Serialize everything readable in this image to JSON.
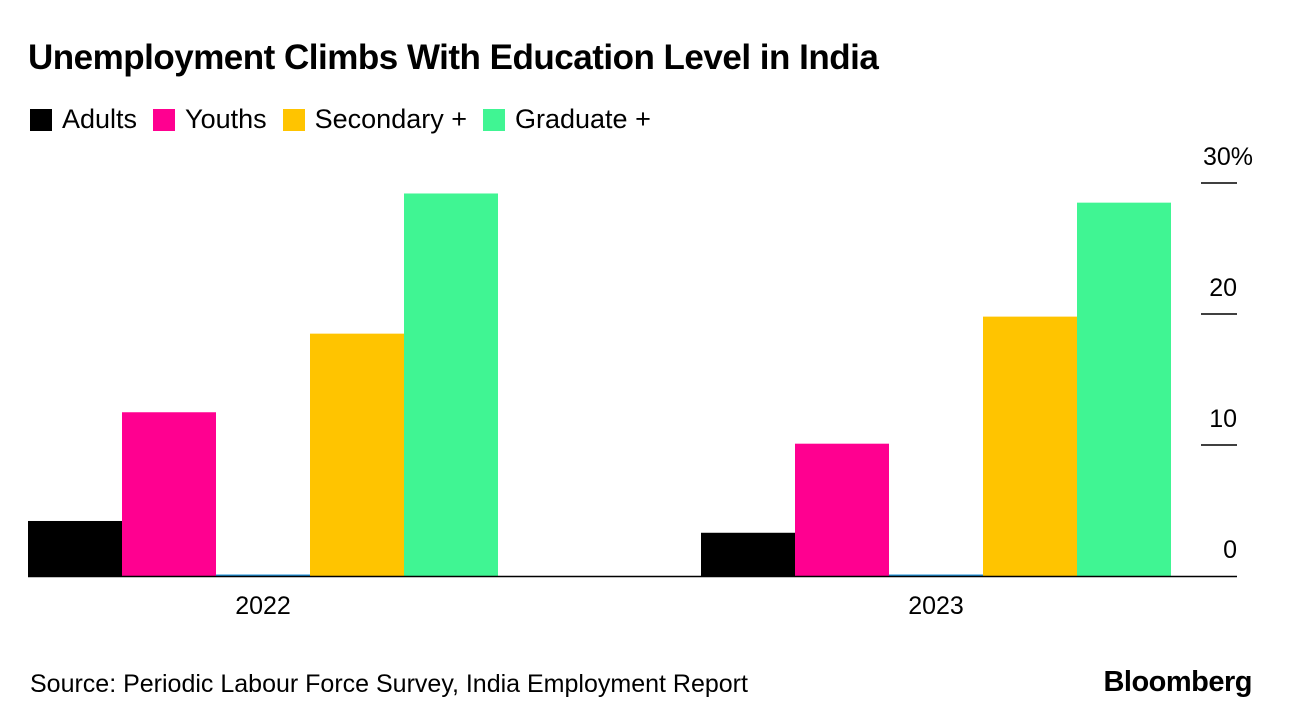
{
  "title": "Unemployment Climbs With Education Level in India",
  "legend": [
    {
      "label": "Adults",
      "color": "#000000"
    },
    {
      "label": "Youths",
      "color": "#ff0090"
    },
    {
      "label": "Secondary +",
      "color": "#ffc400"
    },
    {
      "label": "Graduate +",
      "color": "#40f593"
    }
  ],
  "source": "Source: Periodic Labour Force Survey, India Employment Report",
  "brand": "Bloomberg",
  "chart_data": {
    "type": "bar",
    "title": "Unemployment Climbs With Education Level in India",
    "categories": [
      "2022",
      "2023"
    ],
    "series": [
      {
        "name": "Adults",
        "values": [
          4.2,
          3.3
        ]
      },
      {
        "name": "Youths",
        "values": [
          12.5,
          10.1
        ]
      },
      {
        "name": "",
        "values": [
          0.1,
          0.1
        ]
      },
      {
        "name": "Secondary +",
        "values": [
          18.5,
          19.8
        ]
      },
      {
        "name": "Graduate +",
        "values": [
          29.2,
          28.5
        ]
      }
    ],
    "colors": [
      "#000000",
      "#ff0090",
      "#1f8fd6",
      "#ffc400",
      "#40f593"
    ],
    "y_ticks": [
      {
        "value": 0,
        "label": "0"
      },
      {
        "value": 10,
        "label": "10"
      },
      {
        "value": 20,
        "label": "20"
      },
      {
        "value": 30,
        "label": "30%"
      }
    ],
    "ylim": [
      0,
      30
    ],
    "xlabel": "",
    "ylabel": "",
    "axis_position": "right"
  }
}
